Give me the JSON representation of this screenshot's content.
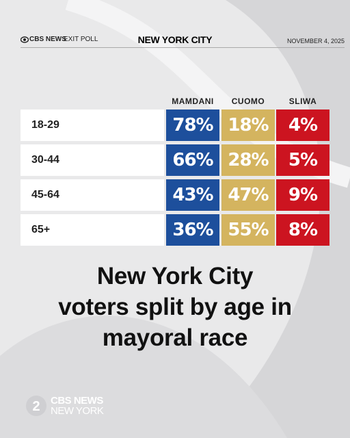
{
  "header": {
    "source": "CBS NEWS",
    "label": "EXIT POLL",
    "title": "NEW YORK CITY",
    "date": "NOVEMBER 4, 2025"
  },
  "table": {
    "columns": [
      "MAMDANI",
      "CUOMO",
      "SLIWA"
    ],
    "rows": [
      {
        "label": "18-29",
        "cells": [
          "78%",
          "18%",
          "4%"
        ]
      },
      {
        "label": "30-44",
        "cells": [
          "66%",
          "28%",
          "5%"
        ]
      },
      {
        "label": "45-64",
        "cells": [
          "43%",
          "47%",
          "9%"
        ]
      },
      {
        "label": "65+",
        "cells": [
          "36%",
          "55%",
          "8%"
        ]
      }
    ]
  },
  "headline": [
    "New York City",
    "voters split by age in",
    "mayoral race"
  ],
  "footer": {
    "channel": "2",
    "source": "CBS NEWS",
    "location": "NEW YORK"
  }
}
